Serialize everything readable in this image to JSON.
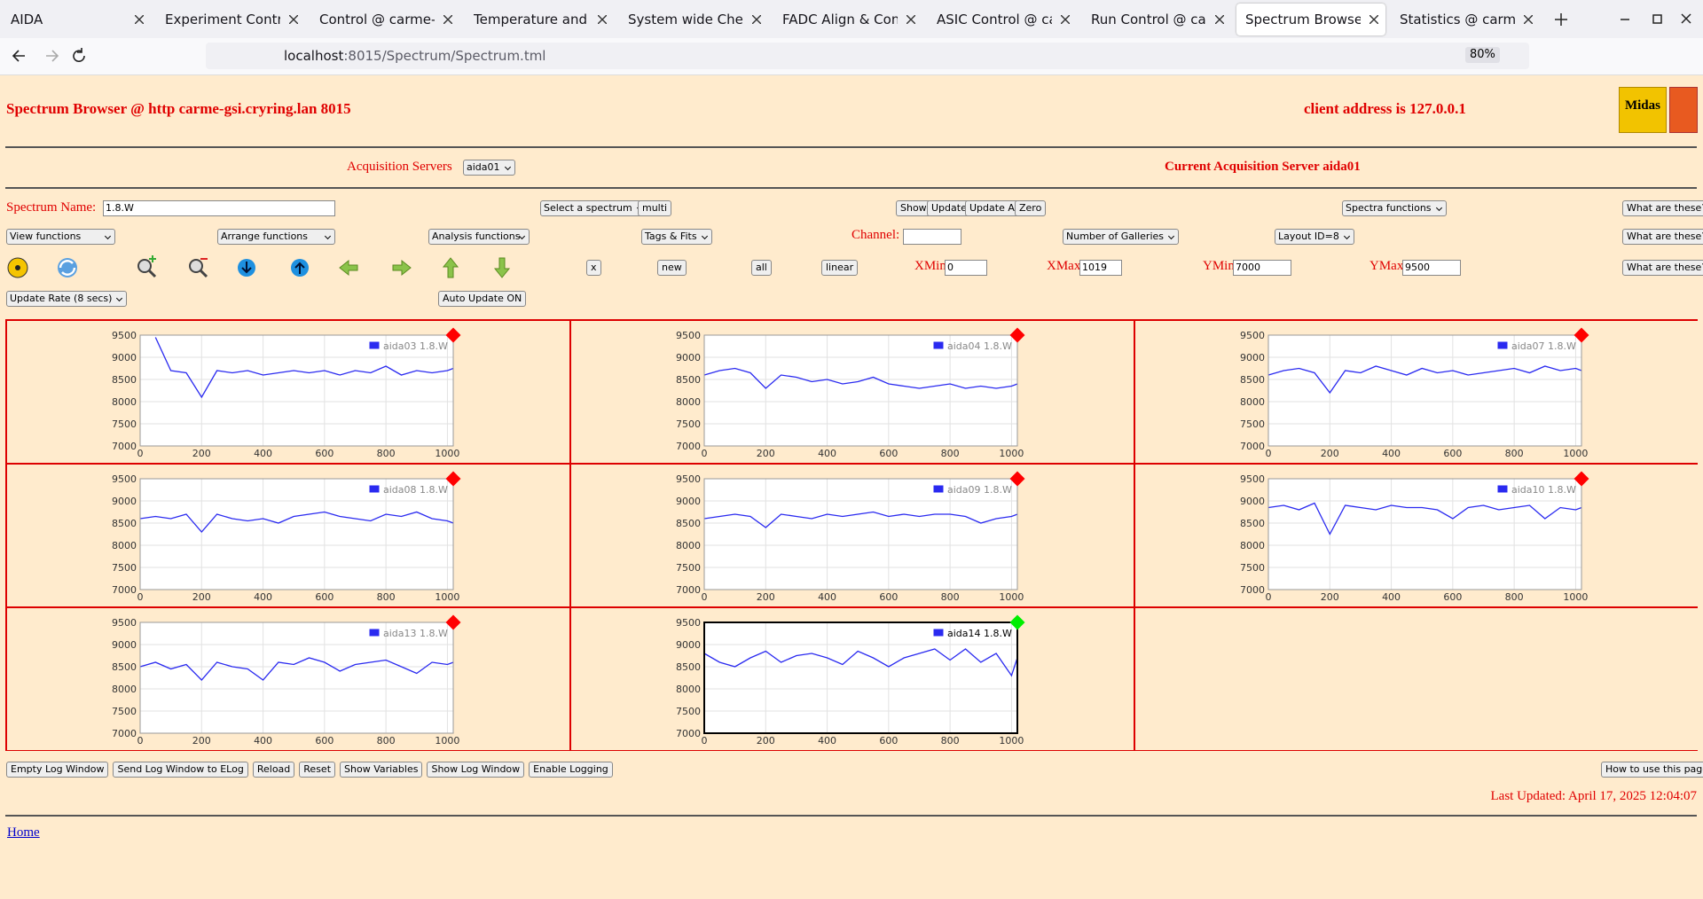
{
  "browser": {
    "tabs": [
      "AIDA",
      "Experiment Control @",
      "Control @ carme-gsi",
      "Temperature and stat",
      "System wide Checks",
      "FADC Align & Control",
      "ASIC Control @ carm",
      "Run Control @ carme",
      "Spectrum Browser @",
      "Statistics @ carme-g"
    ],
    "active_tab": 8,
    "url": [
      "localhost",
      ":8015/Spectrum/Spectrum.tml"
    ],
    "zoom": "80%"
  },
  "header": {
    "title": "Spectrum Browser @ http carme-gsi.cryring.lan 8015",
    "client": "client address is 127.0.0.1",
    "logo": "Midas"
  },
  "acquisition": {
    "label": "Acquisition Servers",
    "server": "aida01",
    "current": "Current Acquisition Server aida01"
  },
  "controls": {
    "spectrum_name_label": "Spectrum Name:",
    "spectrum_name": "1.8.W",
    "select_spectrum": "Select a spectrum",
    "multi": "multi",
    "show": "Show",
    "update": "Update",
    "update_all": "Update All",
    "zero": "Zero",
    "spectra_functions": "Spectra functions",
    "help": "What are these?",
    "view_functions": "View functions",
    "arrange_functions": "Arrange functions",
    "analysis_functions": "Analysis functions",
    "tags_fits": "Tags & Fits",
    "channel_label": "Channel:",
    "galleries": "Number of Galleries",
    "layout": "Layout ID=8",
    "x": "x",
    "new": "new",
    "all": "all",
    "linear": "linear",
    "xmin_label": "XMin",
    "xmin": "0",
    "xmax_label": "XMax",
    "xmax": "1019",
    "ymin_label": "YMin",
    "ymin": "7000",
    "ymax_label": "YMax",
    "ymax": "9500",
    "update_rate": "Update Rate (8 secs)",
    "auto_update": "Auto Update ON"
  },
  "footer": {
    "buttons": [
      "Empty Log Window",
      "Send Log Window to ELog",
      "Reload",
      "Reset",
      "Show Variables",
      "Show Log Window",
      "Enable Logging"
    ],
    "how_to": "How to use this page",
    "last_updated": "Last Updated: April 17, 2025 12:04:07",
    "home": "Home"
  },
  "chart_data": [
    {
      "type": "line",
      "x": [
        0,
        50,
        100,
        150,
        200,
        250,
        300,
        350,
        400,
        450,
        500,
        550,
        600,
        650,
        700,
        750,
        800,
        850,
        900,
        950,
        1000,
        1019
      ],
      "xlim": [
        0,
        1019
      ],
      "ylim": [
        7000,
        9500
      ],
      "xticks": [
        0,
        200,
        400,
        600,
        800,
        1000
      ],
      "yticks": [
        7000,
        7500,
        8000,
        8500,
        9000,
        9500
      ],
      "grid": true,
      "status_color": "#ff0000",
      "selected": false,
      "series": [
        {
          "name": "aida03 1.8.W",
          "color": "#2a2af0",
          "values": [
            null,
            9450,
            8700,
            8650,
            8100,
            8700,
            8650,
            8700,
            8600,
            8650,
            8700,
            8650,
            8700,
            8600,
            8700,
            8650,
            8800,
            8600,
            8700,
            8650,
            8700,
            8750
          ]
        }
      ]
    },
    {
      "type": "line",
      "x": [
        0,
        50,
        100,
        150,
        200,
        250,
        300,
        350,
        400,
        450,
        500,
        550,
        600,
        650,
        700,
        750,
        800,
        850,
        900,
        950,
        1000,
        1019
      ],
      "xlim": [
        0,
        1019
      ],
      "ylim": [
        7000,
        9500
      ],
      "xticks": [
        0,
        200,
        400,
        600,
        800,
        1000
      ],
      "yticks": [
        7000,
        7500,
        8000,
        8500,
        9000,
        9500
      ],
      "grid": true,
      "status_color": "#ff0000",
      "selected": false,
      "series": [
        {
          "name": "aida04 1.8.W",
          "color": "#2a2af0",
          "values": [
            8600,
            8700,
            8750,
            8650,
            8300,
            8600,
            8550,
            8450,
            8500,
            8400,
            8450,
            8550,
            8400,
            8350,
            8300,
            8350,
            8400,
            8300,
            8350,
            8300,
            8350,
            8400
          ]
        }
      ]
    },
    {
      "type": "line",
      "x": [
        0,
        50,
        100,
        150,
        200,
        250,
        300,
        350,
        400,
        450,
        500,
        550,
        600,
        650,
        700,
        750,
        800,
        850,
        900,
        950,
        1000,
        1019
      ],
      "xlim": [
        0,
        1019
      ],
      "ylim": [
        7000,
        9500
      ],
      "xticks": [
        0,
        200,
        400,
        600,
        800,
        1000
      ],
      "yticks": [
        7000,
        7500,
        8000,
        8500,
        9000,
        9500
      ],
      "grid": true,
      "status_color": "#ff0000",
      "selected": false,
      "series": [
        {
          "name": "aida07 1.8.W",
          "color": "#2a2af0",
          "values": [
            8600,
            8700,
            8750,
            8650,
            8200,
            8700,
            8650,
            8800,
            8700,
            8600,
            8750,
            8650,
            8700,
            8600,
            8650,
            8700,
            8750,
            8650,
            8800,
            8700,
            8750,
            8700
          ]
        }
      ]
    },
    {
      "type": "line",
      "x": [
        0,
        50,
        100,
        150,
        200,
        250,
        300,
        350,
        400,
        450,
        500,
        550,
        600,
        650,
        700,
        750,
        800,
        850,
        900,
        950,
        1000,
        1019
      ],
      "xlim": [
        0,
        1019
      ],
      "ylim": [
        7000,
        9500
      ],
      "xticks": [
        0,
        200,
        400,
        600,
        800,
        1000
      ],
      "yticks": [
        7000,
        7500,
        8000,
        8500,
        9000,
        9500
      ],
      "grid": true,
      "status_color": "#ff0000",
      "selected": false,
      "series": [
        {
          "name": "aida08 1.8.W",
          "color": "#2a2af0",
          "values": [
            8600,
            8650,
            8600,
            8700,
            8300,
            8700,
            8600,
            8550,
            8600,
            8500,
            8650,
            8700,
            8750,
            8650,
            8600,
            8550,
            8700,
            8650,
            8750,
            8600,
            8550,
            8500
          ]
        }
      ]
    },
    {
      "type": "line",
      "x": [
        0,
        50,
        100,
        150,
        200,
        250,
        300,
        350,
        400,
        450,
        500,
        550,
        600,
        650,
        700,
        750,
        800,
        850,
        900,
        950,
        1000,
        1019
      ],
      "xlim": [
        0,
        1019
      ],
      "ylim": [
        7000,
        9500
      ],
      "xticks": [
        0,
        200,
        400,
        600,
        800,
        1000
      ],
      "yticks": [
        7000,
        7500,
        8000,
        8500,
        9000,
        9500
      ],
      "grid": true,
      "status_color": "#ff0000",
      "selected": false,
      "series": [
        {
          "name": "aida09 1.8.W",
          "color": "#2a2af0",
          "values": [
            8600,
            8650,
            8700,
            8650,
            8400,
            8700,
            8650,
            8600,
            8700,
            8650,
            8700,
            8750,
            8650,
            8700,
            8650,
            8700,
            8700,
            8650,
            8500,
            8600,
            8650,
            8700
          ]
        }
      ]
    },
    {
      "type": "line",
      "x": [
        0,
        50,
        100,
        150,
        200,
        250,
        300,
        350,
        400,
        450,
        500,
        550,
        600,
        650,
        700,
        750,
        800,
        850,
        900,
        950,
        1000,
        1019
      ],
      "xlim": [
        0,
        1019
      ],
      "ylim": [
        7000,
        9500
      ],
      "xticks": [
        0,
        200,
        400,
        600,
        800,
        1000
      ],
      "yticks": [
        7000,
        7500,
        8000,
        8500,
        9000,
        9500
      ],
      "grid": true,
      "status_color": "#ff0000",
      "selected": false,
      "series": [
        {
          "name": "aida10 1.8.W",
          "color": "#2a2af0",
          "values": [
            8850,
            8900,
            8800,
            8950,
            8250,
            8900,
            8850,
            8800,
            8900,
            8850,
            8850,
            8800,
            8600,
            8850,
            8900,
            8800,
            8850,
            8900,
            8600,
            8850,
            8800,
            8850
          ]
        }
      ]
    },
    {
      "type": "line",
      "x": [
        0,
        50,
        100,
        150,
        200,
        250,
        300,
        350,
        400,
        450,
        500,
        550,
        600,
        650,
        700,
        750,
        800,
        850,
        900,
        950,
        1000,
        1019
      ],
      "xlim": [
        0,
        1019
      ],
      "ylim": [
        7000,
        9500
      ],
      "xticks": [
        0,
        200,
        400,
        600,
        800,
        1000
      ],
      "yticks": [
        7000,
        7500,
        8000,
        8500,
        9000,
        9500
      ],
      "grid": true,
      "status_color": "#ff0000",
      "selected": false,
      "series": [
        {
          "name": "aida13 1.8.W",
          "color": "#2a2af0",
          "values": [
            8500,
            8600,
            8450,
            8550,
            8200,
            8600,
            8500,
            8450,
            8200,
            8600,
            8550,
            8700,
            8600,
            8400,
            8550,
            8600,
            8650,
            8500,
            8350,
            8600,
            8550,
            8600
          ]
        }
      ]
    },
    {
      "type": "line",
      "x": [
        0,
        50,
        100,
        150,
        200,
        250,
        300,
        350,
        400,
        450,
        500,
        550,
        600,
        650,
        700,
        750,
        800,
        850,
        900,
        950,
        1000,
        1019
      ],
      "xlim": [
        0,
        1019
      ],
      "ylim": [
        7000,
        9500
      ],
      "xticks": [
        0,
        200,
        400,
        600,
        800,
        1000
      ],
      "yticks": [
        7000,
        7500,
        8000,
        8500,
        9000,
        9500
      ],
      "grid": true,
      "status_color": "#00ee00",
      "selected": true,
      "series": [
        {
          "name": "aida14 1.8.W",
          "color": "#2a2af0",
          "values": [
            8800,
            8600,
            8500,
            8700,
            8850,
            8600,
            8750,
            8800,
            8700,
            8550,
            8850,
            8700,
            8500,
            8700,
            8800,
            8900,
            8650,
            8900,
            8600,
            8800,
            8300,
            8700
          ]
        }
      ]
    }
  ]
}
